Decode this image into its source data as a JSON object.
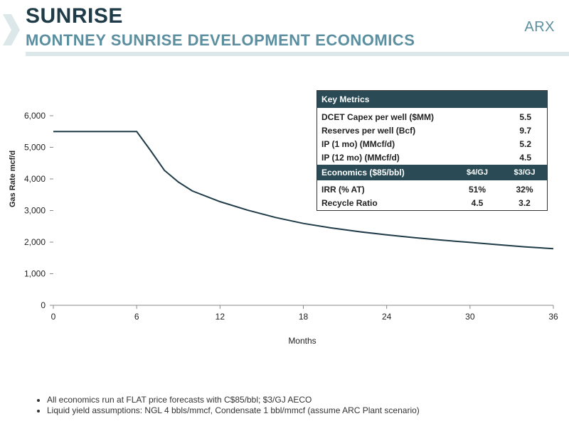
{
  "header": {
    "title": "SUNRISE",
    "subtitle": "MONTNEY SUNRISE DEVELOPMENT ECONOMICS",
    "logo": "ARX"
  },
  "colors": {
    "dark": "#1f3b47",
    "accent": "#5b8fa0",
    "line": "#1f3b47",
    "table_header": "#2a4a55"
  },
  "chart_data": {
    "type": "line",
    "xlabel": "Months",
    "ylabel": "Gas Rate mcf/d",
    "xlim": [
      0,
      36
    ],
    "ylim": [
      0,
      6000
    ],
    "x_ticks": [
      0,
      6,
      12,
      18,
      24,
      30,
      36
    ],
    "y_ticks": [
      0,
      1000,
      2000,
      3000,
      4000,
      5000,
      6000
    ],
    "y_tick_labels": [
      "0",
      "1,000",
      "2,000",
      "3,000",
      "4,000",
      "5,000",
      "6,000"
    ],
    "grid": false,
    "series": [
      {
        "x": [
          0,
          6,
          7,
          8,
          9,
          10,
          12,
          14,
          16,
          18,
          20,
          22,
          24,
          26,
          28,
          30,
          32,
          34,
          36
        ],
        "values": [
          5500,
          5500,
          4900,
          4270,
          3900,
          3620,
          3280,
          3010,
          2780,
          2590,
          2450,
          2330,
          2230,
          2140,
          2060,
          1990,
          1920,
          1850,
          1790
        ]
      }
    ]
  },
  "metrics": {
    "title": "Key Metrics",
    "rows": [
      {
        "label": "DCET Capex per well ($MM)",
        "value": "5.5"
      },
      {
        "label": "Reserves per well (Bcf)",
        "value": "9.7"
      },
      {
        "label": "IP (1 mo) (MMcf/d)",
        "value": "5.2"
      },
      {
        "label": "IP (12 mo) (MMcf/d)",
        "value": "4.5"
      }
    ],
    "economics": {
      "title": "Economics ($85/bbl)",
      "col1": "$4/GJ",
      "col2": "$3/GJ",
      "rows": [
        {
          "label": "IRR (% AT)",
          "v1": "51%",
          "v2": "32%"
        },
        {
          "label": "Recycle Ratio",
          "v1": "4.5",
          "v2": "3.2"
        }
      ]
    }
  },
  "notes": [
    "All economics run at FLAT price forecasts with C$85/bbl; $3/GJ AECO",
    "Liquid yield assumptions: NGL 4 bbls/mmcf,  Condensate 1 bbl/mmcf (assume ARC Plant scenario)"
  ]
}
